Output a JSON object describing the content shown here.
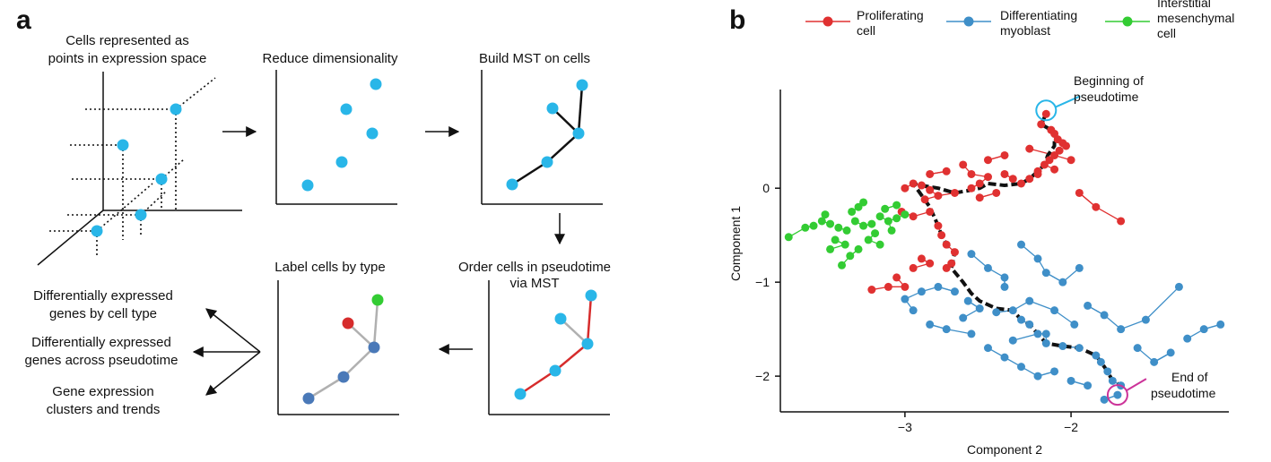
{
  "panel_a": {
    "letter": "a",
    "step1": {
      "line1": "Cells represented as",
      "line2": "points in expression space"
    },
    "step2": {
      "title": "Reduce dimensionality"
    },
    "step3": {
      "title": "Build MST on cells"
    },
    "step4": {
      "line1": "Order cells in pseudotime",
      "line2": "via MST"
    },
    "step5": {
      "title": "Label cells by type"
    },
    "outputs": [
      {
        "line1": "Differentially expressed",
        "line2": "genes by cell type"
      },
      {
        "line1": "Differentially expressed",
        "line2": "genes across pseudotime"
      },
      {
        "line1": "Gene expression",
        "line2": "clusters and trends"
      }
    ],
    "colors": {
      "cell": "#29b6e8",
      "edge": "#111111",
      "ordered_edge": "#d62c2c",
      "type_a": "#d62c2c",
      "type_b": "#4a79b8",
      "type_c": "#33cc33",
      "gray_edge": "#b0b0b0"
    }
  },
  "panel_b": {
    "letter": "b",
    "legend": [
      {
        "line1": "Proliferating",
        "line2": "cell",
        "line3": "",
        "color": "#e03131"
      },
      {
        "line1": "Differentiating",
        "line2": "myoblast",
        "line3": "",
        "color": "#3f8fc8"
      },
      {
        "line1": "Interstitial",
        "line2": "mesenchymal",
        "line3": "cell",
        "color": "#33cc33"
      }
    ],
    "annotations": {
      "begin": {
        "line1": "Beginning of",
        "line2": "pseudotime",
        "color": "#29b6e8"
      },
      "end": {
        "line1": "End of",
        "line2": "pseudotime",
        "color": "#cc3399"
      }
    }
  },
  "chart_data": {
    "type": "scatter",
    "title": "",
    "xlabel": "Component 2",
    "ylabel": "Component 1",
    "xlim": [
      -3.75,
      -1.05
    ],
    "ylim": [
      -2.38,
      1.05
    ],
    "xticks": [
      -3,
      -2
    ],
    "yticks": [
      0,
      -1,
      -2
    ],
    "grid": false,
    "legend_position": "top",
    "series": [
      {
        "name": "Proliferating cell",
        "color": "#e03131",
        "points": [
          [
            -2.15,
            0.79
          ],
          [
            -2.18,
            0.68
          ],
          [
            -2.12,
            0.62
          ],
          [
            -2.1,
            0.58
          ],
          [
            -2.08,
            0.52
          ],
          [
            -2.05,
            0.48
          ],
          [
            -2.03,
            0.45
          ],
          [
            -2.07,
            0.4
          ],
          [
            -2.1,
            0.35
          ],
          [
            -2.13,
            0.3
          ],
          [
            -2.16,
            0.25
          ],
          [
            -2.2,
            0.18
          ],
          [
            -2.25,
            0.1
          ],
          [
            -2.3,
            0.05
          ],
          [
            -2.35,
            0.1
          ],
          [
            -2.4,
            0.15
          ],
          [
            -2.5,
            0.12
          ],
          [
            -2.55,
            0.05
          ],
          [
            -2.6,
            0.0
          ],
          [
            -2.7,
            -0.05
          ],
          [
            -2.8,
            -0.08
          ],
          [
            -2.85,
            -0.02
          ],
          [
            -2.9,
            0.03
          ],
          [
            -2.95,
            0.05
          ],
          [
            -3.0,
            0.0
          ],
          [
            -2.85,
            -0.25
          ],
          [
            -2.8,
            -0.4
          ],
          [
            -2.78,
            -0.5
          ],
          [
            -2.75,
            -0.6
          ],
          [
            -2.7,
            -0.68
          ],
          [
            -2.72,
            -0.8
          ],
          [
            -2.75,
            -0.85
          ],
          [
            -2.85,
            -0.8
          ],
          [
            -2.95,
            -0.85
          ],
          [
            -3.05,
            -0.95
          ],
          [
            -3.1,
            -1.05
          ],
          [
            -3.2,
            -1.08
          ],
          [
            -3.0,
            -1.05
          ],
          [
            -2.9,
            -0.75
          ],
          [
            -2.75,
            0.18
          ],
          [
            -2.65,
            0.25
          ],
          [
            -2.5,
            0.3
          ],
          [
            -2.4,
            0.35
          ],
          [
            -2.25,
            0.42
          ],
          [
            -2.0,
            0.3
          ],
          [
            -2.1,
            0.2
          ],
          [
            -2.2,
            0.15
          ],
          [
            -1.95,
            -0.05
          ],
          [
            -1.85,
            -0.2
          ],
          [
            -1.7,
            -0.35
          ],
          [
            -2.6,
            0.15
          ],
          [
            -2.55,
            -0.1
          ],
          [
            -2.45,
            -0.05
          ],
          [
            -2.85,
            0.15
          ],
          [
            -3.02,
            -0.25
          ],
          [
            -2.95,
            -0.3
          ],
          [
            -2.88,
            -0.12
          ]
        ]
      },
      {
        "name": "Differentiating myoblast",
        "color": "#3f8fc8",
        "points": [
          [
            -1.72,
            -2.2
          ],
          [
            -1.7,
            -2.1
          ],
          [
            -1.75,
            -2.05
          ],
          [
            -1.78,
            -1.95
          ],
          [
            -1.82,
            -1.85
          ],
          [
            -1.85,
            -1.78
          ],
          [
            -1.95,
            -1.7
          ],
          [
            -2.05,
            -1.68
          ],
          [
            -2.15,
            -1.65
          ],
          [
            -2.2,
            -1.55
          ],
          [
            -2.25,
            -1.45
          ],
          [
            -2.3,
            -1.4
          ],
          [
            -2.35,
            -1.3
          ],
          [
            -2.45,
            -1.32
          ],
          [
            -2.55,
            -1.28
          ],
          [
            -2.62,
            -1.2
          ],
          [
            -2.7,
            -1.1
          ],
          [
            -2.8,
            -1.05
          ],
          [
            -2.9,
            -1.1
          ],
          [
            -3.0,
            -1.18
          ],
          [
            -2.95,
            -1.3
          ],
          [
            -2.85,
            -1.45
          ],
          [
            -2.75,
            -1.5
          ],
          [
            -2.6,
            -1.55
          ],
          [
            -2.5,
            -1.7
          ],
          [
            -2.4,
            -1.8
          ],
          [
            -2.3,
            -1.9
          ],
          [
            -2.2,
            -2.0
          ],
          [
            -2.1,
            -1.95
          ],
          [
            -2.0,
            -2.05
          ],
          [
            -1.9,
            -2.1
          ],
          [
            -1.8,
            -2.25
          ],
          [
            -2.6,
            -0.7
          ],
          [
            -2.5,
            -0.85
          ],
          [
            -2.4,
            -0.95
          ],
          [
            -2.3,
            -0.6
          ],
          [
            -2.2,
            -0.75
          ],
          [
            -2.15,
            -0.9
          ],
          [
            -2.05,
            -1.0
          ],
          [
            -1.95,
            -0.85
          ],
          [
            -1.9,
            -1.25
          ],
          [
            -1.8,
            -1.35
          ],
          [
            -1.7,
            -1.5
          ],
          [
            -1.6,
            -1.7
          ],
          [
            -1.5,
            -1.85
          ],
          [
            -1.4,
            -1.75
          ],
          [
            -1.3,
            -1.6
          ],
          [
            -1.2,
            -1.5
          ],
          [
            -1.1,
            -1.45
          ],
          [
            -1.35,
            -1.05
          ],
          [
            -1.55,
            -1.4
          ],
          [
            -2.1,
            -1.3
          ],
          [
            -2.25,
            -1.2
          ],
          [
            -2.4,
            -1.05
          ],
          [
            -2.15,
            -1.55
          ],
          [
            -1.98,
            -1.45
          ],
          [
            -2.65,
            -1.38
          ],
          [
            -2.35,
            -1.62
          ]
        ]
      },
      {
        "name": "Interstitial mesenchymal cell",
        "color": "#33cc33",
        "points": [
          [
            -3.0,
            -0.28
          ],
          [
            -3.05,
            -0.32
          ],
          [
            -3.1,
            -0.35
          ],
          [
            -3.15,
            -0.3
          ],
          [
            -3.2,
            -0.38
          ],
          [
            -3.25,
            -0.4
          ],
          [
            -3.3,
            -0.35
          ],
          [
            -3.35,
            -0.45
          ],
          [
            -3.4,
            -0.42
          ],
          [
            -3.45,
            -0.38
          ],
          [
            -3.5,
            -0.35
          ],
          [
            -3.55,
            -0.4
          ],
          [
            -3.6,
            -0.42
          ],
          [
            -3.7,
            -0.52
          ],
          [
            -3.28,
            -0.2
          ],
          [
            -3.32,
            -0.25
          ],
          [
            -3.22,
            -0.55
          ],
          [
            -3.28,
            -0.65
          ],
          [
            -3.33,
            -0.72
          ],
          [
            -3.38,
            -0.82
          ],
          [
            -3.18,
            -0.48
          ],
          [
            -3.12,
            -0.22
          ],
          [
            -3.42,
            -0.55
          ],
          [
            -3.48,
            -0.28
          ],
          [
            -3.08,
            -0.45
          ],
          [
            -3.36,
            -0.6
          ],
          [
            -3.25,
            -0.15
          ],
          [
            -3.15,
            -0.6
          ],
          [
            -3.05,
            -0.18
          ],
          [
            -3.45,
            -0.65
          ]
        ]
      }
    ],
    "trajectory": [
      [
        -2.15,
        0.79
      ],
      [
        -2.18,
        0.68
      ],
      [
        -2.12,
        0.62
      ],
      [
        -2.1,
        0.55
      ],
      [
        -2.1,
        0.45
      ],
      [
        -2.14,
        0.35
      ],
      [
        -2.16,
        0.25
      ],
      [
        -2.2,
        0.18
      ],
      [
        -2.25,
        0.1
      ],
      [
        -2.3,
        0.05
      ],
      [
        -2.4,
        0.03
      ],
      [
        -2.5,
        0.05
      ],
      [
        -2.55,
        0.0
      ],
      [
        -2.6,
        -0.02
      ],
      [
        -2.7,
        -0.05
      ],
      [
        -2.8,
        0.0
      ],
      [
        -2.9,
        0.03
      ],
      [
        -2.95,
        0.05
      ],
      [
        -2.85,
        -0.2
      ],
      [
        -2.8,
        -0.4
      ],
      [
        -2.78,
        -0.5
      ],
      [
        -2.75,
        -0.6
      ],
      [
        -2.7,
        -0.68
      ],
      [
        -2.72,
        -0.85
      ],
      [
        -2.65,
        -1.0
      ],
      [
        -2.6,
        -1.12
      ],
      [
        -2.55,
        -1.2
      ],
      [
        -2.45,
        -1.28
      ],
      [
        -2.35,
        -1.3
      ],
      [
        -2.3,
        -1.4
      ],
      [
        -2.25,
        -1.45
      ],
      [
        -2.2,
        -1.55
      ],
      [
        -2.15,
        -1.65
      ],
      [
        -2.05,
        -1.68
      ],
      [
        -1.95,
        -1.7
      ],
      [
        -1.85,
        -1.78
      ],
      [
        -1.82,
        -1.85
      ],
      [
        -1.78,
        -1.95
      ],
      [
        -1.75,
        -2.05
      ],
      [
        -1.7,
        -2.1
      ],
      [
        -1.72,
        -2.2
      ]
    ]
  }
}
